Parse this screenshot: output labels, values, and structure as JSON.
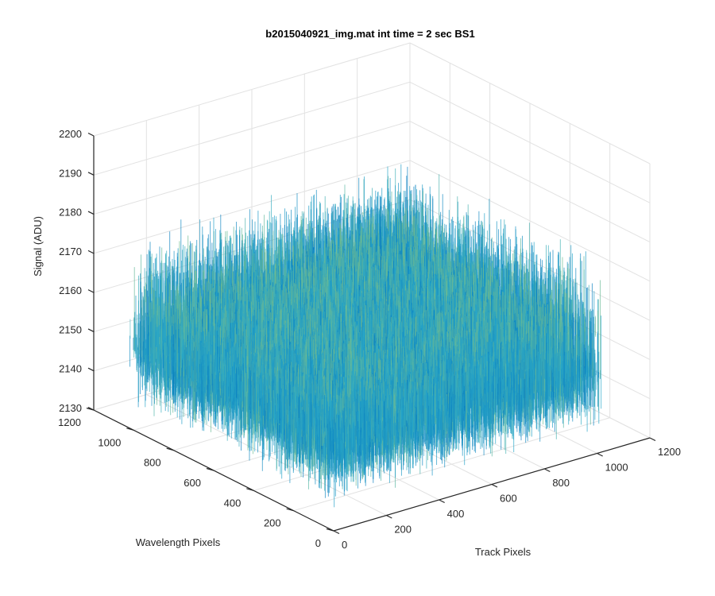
{
  "chart_data": {
    "type": "surface",
    "title": "b2015040921_img.mat int time = 2 sec   BS1",
    "xlabel": "Track Pixels",
    "ylabel": "Wavelength Pixels",
    "zlabel": "Signal (ADU)",
    "xlim": [
      0,
      1200
    ],
    "ylim": [
      0,
      1200
    ],
    "zlim": [
      2130,
      2200
    ],
    "xticks": [
      "0",
      "200",
      "400",
      "600",
      "800",
      "1000",
      "1200"
    ],
    "yticks": [
      "0",
      "200",
      "400",
      "600",
      "800",
      "1000",
      "1200"
    ],
    "zticks": [
      "2130",
      "2140",
      "2150",
      "2160",
      "2170",
      "2180",
      "2190",
      "2200"
    ],
    "data_extent": {
      "x": [
        0,
        1024
      ],
      "y": [
        0,
        1024
      ]
    },
    "surface_mean": 2150,
    "noise_range": [
      2135,
      2182
    ],
    "grid": true,
    "colormap": "parula",
    "colors": {
      "low": "#0072BD",
      "mid": "#2AA9C9",
      "high": "#C7D44A",
      "grid": "#e2e2e2",
      "axis": "#262626"
    }
  }
}
